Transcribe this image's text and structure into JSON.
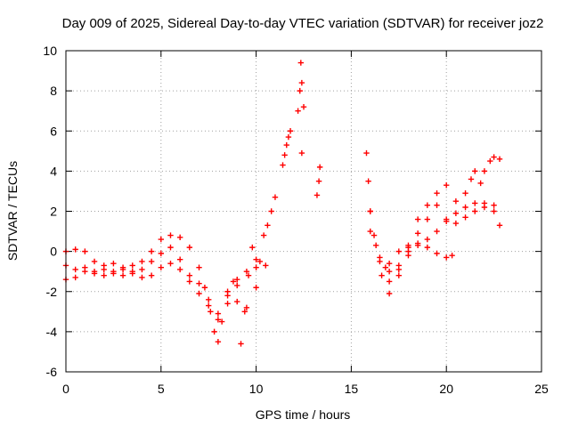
{
  "chart_data": {
    "type": "scatter",
    "title": "Day 009 of 2025, Sidereal Day-to-day VTEC variation (SDTVAR) for receiver joz2",
    "xlabel": "GPS time / hours",
    "ylabel": "SDTVAR / TECUs",
    "xlim": [
      0,
      25
    ],
    "ylim": [
      -6,
      10
    ],
    "x_ticks": [
      "0",
      "5",
      "10",
      "15",
      "20",
      "25"
    ],
    "y_ticks": [
      "-6",
      "-4",
      "-2",
      "0",
      "2",
      "4",
      "6",
      "8",
      "10"
    ],
    "grid": true,
    "legend": "none",
    "marker": "plus",
    "color": "#ff0000",
    "series": [
      {
        "x": [
          0.0,
          0.5,
          1.0,
          1.5,
          2.0,
          2.5,
          3.0,
          3.5,
          4.0,
          4.5,
          5.0,
          5.5,
          6.0,
          6.5,
          7.0,
          7.3,
          7.6,
          7.8,
          8.0,
          8.2,
          8.5,
          8.8,
          9.0,
          9.2,
          9.4,
          9.6,
          9.8,
          10.0,
          10.2,
          10.4,
          10.6,
          10.8,
          11.0
        ],
        "y": [
          0.0,
          0.1,
          0.0,
          -0.5,
          -0.7,
          -0.6,
          -0.8,
          -0.7,
          -0.5,
          0.0,
          0.6,
          0.8,
          0.7,
          0.2,
          -0.8,
          -1.8,
          -3.0,
          -4.0,
          -4.5,
          -3.5,
          -2.0,
          -1.5,
          -2.5,
          -4.6,
          -3.0,
          -1.2,
          0.2,
          -0.8,
          -0.5,
          0.8,
          1.3,
          2.0,
          2.7
        ]
      },
      {
        "x": [
          0.0,
          0.5,
          1.0,
          1.5,
          2.0,
          2.5,
          3.0,
          3.5,
          4.0,
          4.5,
          5.0,
          5.5,
          6.0,
          6.5,
          7.0,
          7.5,
          8.0,
          8.5,
          9.0,
          9.5,
          10.0,
          10.5
        ],
        "y": [
          -0.7,
          -0.9,
          -0.8,
          -1.0,
          -0.9,
          -1.1,
          -1.2,
          -1.0,
          -0.9,
          -0.5,
          -0.1,
          0.2,
          -0.4,
          -1.2,
          -1.6,
          -2.4,
          -3.4,
          -2.6,
          -1.7,
          -2.8,
          -1.8,
          -0.7
        ]
      },
      {
        "x": [
          0.0,
          0.5,
          1.0,
          1.5,
          2.0,
          2.5,
          3.0,
          3.5,
          4.0,
          4.5,
          5.0,
          5.5,
          6.0,
          6.5,
          7.0,
          7.5,
          8.0,
          8.5,
          9.0,
          9.5,
          10.0
        ],
        "y": [
          -1.4,
          -1.3,
          -1.0,
          -1.1,
          -1.2,
          -1.0,
          -0.9,
          -1.1,
          -1.3,
          -1.2,
          -0.8,
          -0.6,
          -0.9,
          -1.5,
          -2.1,
          -2.7,
          -3.1,
          -2.2,
          -1.4,
          -1.0,
          -0.4
        ]
      },
      {
        "x": [
          11.4,
          11.5,
          11.6,
          11.7,
          11.8
        ],
        "y": [
          4.3,
          4.8,
          5.3,
          5.7,
          6.0
        ]
      },
      {
        "x": [
          12.2,
          12.3,
          12.35,
          12.4,
          12.5
        ],
        "y": [
          7.0,
          8.0,
          9.4,
          8.4,
          7.2
        ]
      },
      {
        "x": [
          12.4
        ],
        "y": [
          4.9
        ]
      },
      {
        "x": [
          13.2,
          13.3,
          13.35
        ],
        "y": [
          2.8,
          3.5,
          4.2
        ]
      },
      {
        "x": [
          15.8,
          15.9,
          16.0,
          16.2,
          16.5,
          16.8,
          17.0,
          17.5,
          18.0,
          18.5,
          19.0,
          19.5,
          20.0,
          20.5,
          21.0,
          21.5,
          22.0,
          22.5
        ],
        "y": [
          4.9,
          3.5,
          2.0,
          0.8,
          -0.3,
          -0.8,
          -1.0,
          -0.7,
          -0.2,
          0.3,
          0.6,
          1.0,
          1.5,
          1.9,
          2.2,
          2.4,
          2.2,
          2.3
        ]
      },
      {
        "x": [
          16.0,
          16.3,
          16.6,
          17.0,
          17.5,
          18.0,
          18.5,
          19.0,
          19.5,
          20.0,
          20.5,
          21.0,
          21.5,
          22.0,
          22.5,
          22.8
        ],
        "y": [
          2.0,
          0.3,
          -1.2,
          -2.1,
          -1.2,
          0.0,
          0.9,
          1.6,
          2.3,
          1.6,
          1.4,
          1.7,
          2.0,
          2.4,
          2.0,
          1.3
        ]
      },
      {
        "x": [
          16.0,
          16.5,
          17.0,
          17.5,
          18.0,
          18.5,
          19.0,
          19.5,
          20.0,
          20.5,
          21.0,
          21.3,
          21.5,
          21.8,
          22.0,
          22.3,
          22.5,
          22.8
        ],
        "y": [
          1.0,
          -0.5,
          -1.5,
          -0.9,
          0.2,
          1.6,
          2.3,
          2.9,
          3.3,
          2.5,
          2.9,
          3.6,
          4.0,
          3.4,
          4.0,
          4.5,
          4.7,
          4.6
        ]
      },
      {
        "x": [
          17.0,
          17.5,
          18.0,
          18.5,
          19.0,
          19.5,
          20.0,
          20.3
        ],
        "y": [
          -0.6,
          0.0,
          0.3,
          0.4,
          0.2,
          -0.1,
          -0.3,
          -0.2
        ]
      }
    ]
  }
}
